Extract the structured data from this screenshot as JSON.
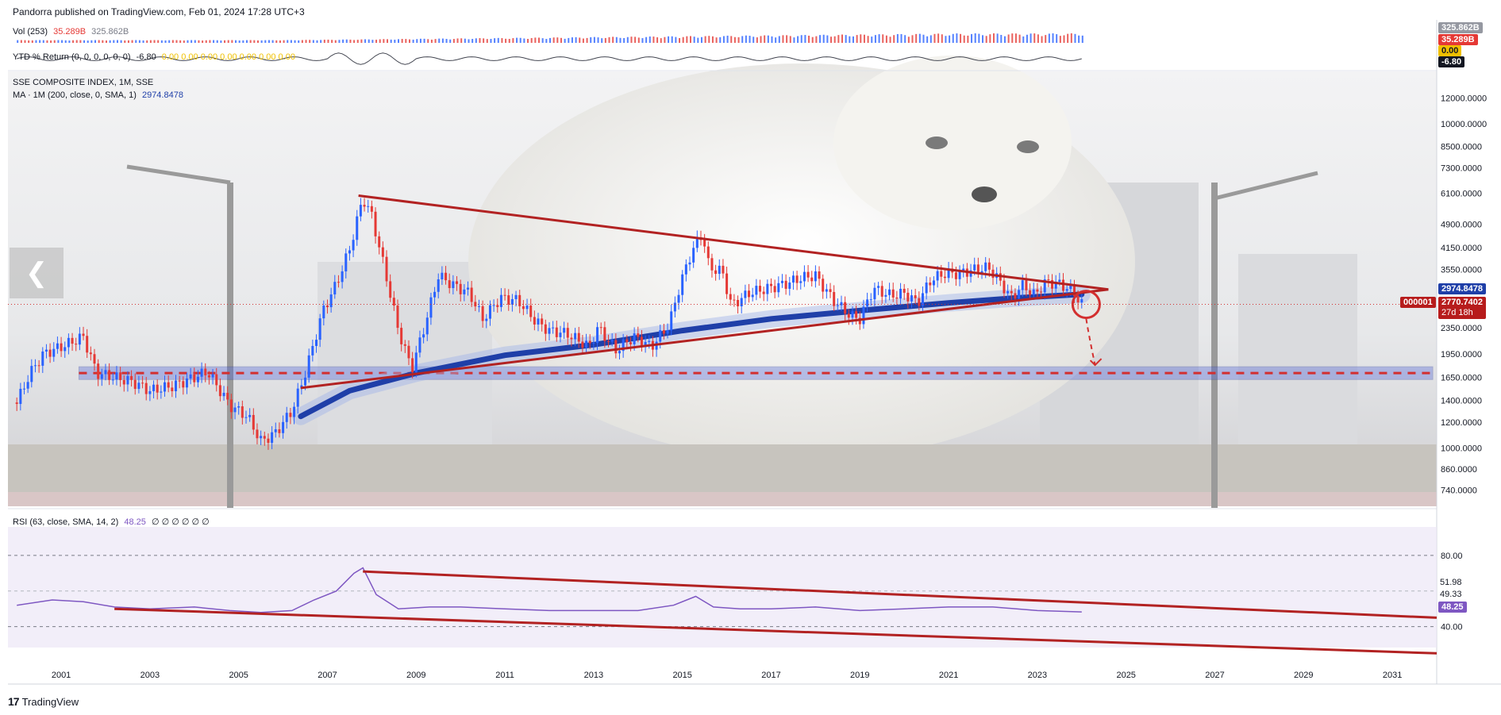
{
  "header": {
    "caption": "Pandorra published on TradingView.com, Feb 01, 2024 17:28 UTC+3"
  },
  "vol_legend": {
    "name": "Vol (253)",
    "value1": "35.289B",
    "value2": "325.862B"
  },
  "ytd_legend": {
    "name": "YTD % Return (0, 0, 0, 0, 0, 0)",
    "value": "-6.80",
    "zeros": "0.00 0.00 0.00 0.00 0.00 0.00 0.00"
  },
  "main_legend": {
    "symbol": "SSE COMPOSITE INDEX, 1M, SSE",
    "ma": "MA · 1M (200, close, 0, SMA, 1)",
    "ma_value": "2974.8478"
  },
  "rsi_legend": {
    "name": "RSI (63, close, SMA, 14, 2)",
    "value": "48.25",
    "zeros": "∅ ∅ ∅ ∅ ∅ ∅"
  },
  "right_tags": {
    "vol_high": "325.862B",
    "vol_last": "35.289B",
    "ytd_zero": "0.00",
    "ytd_last": "-6.80",
    "ma_tag": "2974.8478",
    "symbol_code": "000001",
    "price_tag": "2770.7402",
    "countdown": "27d 18h",
    "rsi_tag": "48.25",
    "rsi_lvl1": "51.98",
    "rsi_lvl2": "49.33"
  },
  "footer": {
    "brand": "TradingView"
  },
  "colors": {
    "trendline": "#b22222",
    "ma": "#1f3fa8",
    "candle_up": "#2962ff",
    "candle_down": "#e53935",
    "rsi_line": "#7e57c2",
    "support_band": "#4a5fd8"
  },
  "chart_data": {
    "type": "candlestick",
    "scale": "log",
    "y_ticks": [
      12000,
      10000,
      8500,
      7300,
      6100,
      4900,
      4150,
      3550,
      2350,
      1950,
      1650,
      1400,
      1200,
      1000,
      860,
      740
    ],
    "y_tick_labels": [
      "12000.0000",
      "10000.0000",
      "8500.0000",
      "7300.0000",
      "6100.0000",
      "4900.0000",
      "4150.0000",
      "3550.0000",
      "2350.0000",
      "1950.0000",
      "1650.0000",
      "1400.0000",
      "1200.0000",
      "1000.0000",
      "860.0000",
      "740.0000"
    ],
    "x_ticks": [
      "2001",
      "2003",
      "2005",
      "2007",
      "2009",
      "2011",
      "2013",
      "2015",
      "2017",
      "2019",
      "2021",
      "2023",
      "2025",
      "2027",
      "2029",
      "2031"
    ],
    "x_range": [
      1999.8,
      2032.0
    ],
    "close_series": [
      [
        2000.0,
        1380
      ],
      [
        2000.3,
        1700
      ],
      [
        2000.6,
        1950
      ],
      [
        2001.0,
        2050
      ],
      [
        2001.5,
        2200
      ],
      [
        2001.8,
        1700
      ],
      [
        2002.2,
        1650
      ],
      [
        2002.6,
        1600
      ],
      [
        2003.0,
        1500
      ],
      [
        2003.5,
        1550
      ],
      [
        2004.0,
        1650
      ],
      [
        2004.3,
        1720
      ],
      [
        2004.8,
        1350
      ],
      [
        2005.2,
        1250
      ],
      [
        2005.5,
        1050
      ],
      [
        2005.8,
        1100
      ],
      [
        2006.2,
        1300
      ],
      [
        2006.5,
        1700
      ],
      [
        2006.9,
        2650
      ],
      [
        2007.2,
        3200
      ],
      [
        2007.5,
        4100
      ],
      [
        2007.8,
        5900
      ],
      [
        2008.0,
        5200
      ],
      [
        2008.3,
        3500
      ],
      [
        2008.6,
        2300
      ],
      [
        2008.9,
        1750
      ],
      [
        2009.2,
        2400
      ],
      [
        2009.5,
        3400
      ],
      [
        2009.8,
        3200
      ],
      [
        2010.2,
        3000
      ],
      [
        2010.5,
        2500
      ],
      [
        2010.9,
        2900
      ],
      [
        2011.3,
        2850
      ],
      [
        2011.7,
        2450
      ],
      [
        2012.0,
        2300
      ],
      [
        2012.4,
        2250
      ],
      [
        2012.9,
        2050
      ],
      [
        2013.1,
        2350
      ],
      [
        2013.5,
        2000
      ],
      [
        2013.9,
        2200
      ],
      [
        2014.3,
        2050
      ],
      [
        2014.7,
        2400
      ],
      [
        2014.95,
        3200
      ],
      [
        2015.2,
        4000
      ],
      [
        2015.45,
        4600
      ],
      [
        2015.6,
        3600
      ],
      [
        2015.9,
        3500
      ],
      [
        2016.1,
        2750
      ],
      [
        2016.5,
        3000
      ],
      [
        2016.9,
        3100
      ],
      [
        2017.3,
        3200
      ],
      [
        2017.7,
        3350
      ],
      [
        2018.0,
        3400
      ],
      [
        2018.4,
        2850
      ],
      [
        2018.8,
        2550
      ],
      [
        2019.0,
        2500
      ],
      [
        2019.3,
        3100
      ],
      [
        2019.7,
        2950
      ],
      [
        2020.0,
        3000
      ],
      [
        2020.3,
        2800
      ],
      [
        2020.6,
        3300
      ],
      [
        2020.9,
        3450
      ],
      [
        2021.2,
        3450
      ],
      [
        2021.6,
        3550
      ],
      [
        2021.9,
        3600
      ],
      [
        2022.2,
        3200
      ],
      [
        2022.4,
        2900
      ],
      [
        2022.7,
        3200
      ],
      [
        2022.9,
        2950
      ],
      [
        2023.2,
        3250
      ],
      [
        2023.5,
        3200
      ],
      [
        2023.8,
        3050
      ],
      [
        2024.0,
        2770
      ]
    ],
    "ma_series": [
      [
        2006.4,
        1250
      ],
      [
        2007.5,
        1500
      ],
      [
        2009.0,
        1700
      ],
      [
        2011.0,
        1930
      ],
      [
        2013.0,
        2080
      ],
      [
        2015.0,
        2300
      ],
      [
        2017.0,
        2500
      ],
      [
        2019.0,
        2650
      ],
      [
        2021.0,
        2800
      ],
      [
        2022.5,
        2900
      ],
      [
        2024.0,
        2974.85
      ]
    ],
    "trendlines": [
      {
        "name": "upper",
        "p1": [
          2007.7,
          6000
        ],
        "p2": [
          2024.6,
          3080
        ]
      },
      {
        "name": "lower",
        "p1": [
          2006.4,
          1530
        ],
        "p2": [
          2024.6,
          3080
        ]
      }
    ],
    "support_level": 1700,
    "forecast_arrow": [
      [
        2024.1,
        2770
      ],
      [
        2024.3,
        1800
      ]
    ],
    "rsi": {
      "levels": [
        80,
        40
      ],
      "series": [
        [
          2000.0,
          52
        ],
        [
          2000.8,
          55
        ],
        [
          2001.5,
          54
        ],
        [
          2002.2,
          51
        ],
        [
          2003.0,
          50
        ],
        [
          2004.0,
          51
        ],
        [
          2004.8,
          49
        ],
        [
          2005.5,
          48
        ],
        [
          2006.2,
          49
        ],
        [
          2006.7,
          55
        ],
        [
          2007.2,
          60
        ],
        [
          2007.6,
          70
        ],
        [
          2007.8,
          73
        ],
        [
          2008.1,
          58
        ],
        [
          2008.6,
          50
        ],
        [
          2009.3,
          51
        ],
        [
          2010.0,
          51
        ],
        [
          2011.0,
          50
        ],
        [
          2012.0,
          49
        ],
        [
          2013.0,
          49
        ],
        [
          2014.0,
          49
        ],
        [
          2014.8,
          52
        ],
        [
          2015.3,
          57
        ],
        [
          2015.7,
          51
        ],
        [
          2016.3,
          50
        ],
        [
          2017.0,
          50
        ],
        [
          2018.0,
          51
        ],
        [
          2019.0,
          49
        ],
        [
          2020.0,
          50
        ],
        [
          2021.0,
          51
        ],
        [
          2022.0,
          51
        ],
        [
          2023.0,
          49
        ],
        [
          2024.0,
          48.25
        ]
      ],
      "trendlines": [
        {
          "name": "upper",
          "p1": [
            2007.8,
            71
          ],
          "p2": [
            2032.0,
            45
          ]
        },
        {
          "name": "lower",
          "p1": [
            2002.2,
            50
          ],
          "p2": [
            2032.0,
            25
          ]
        }
      ]
    }
  }
}
